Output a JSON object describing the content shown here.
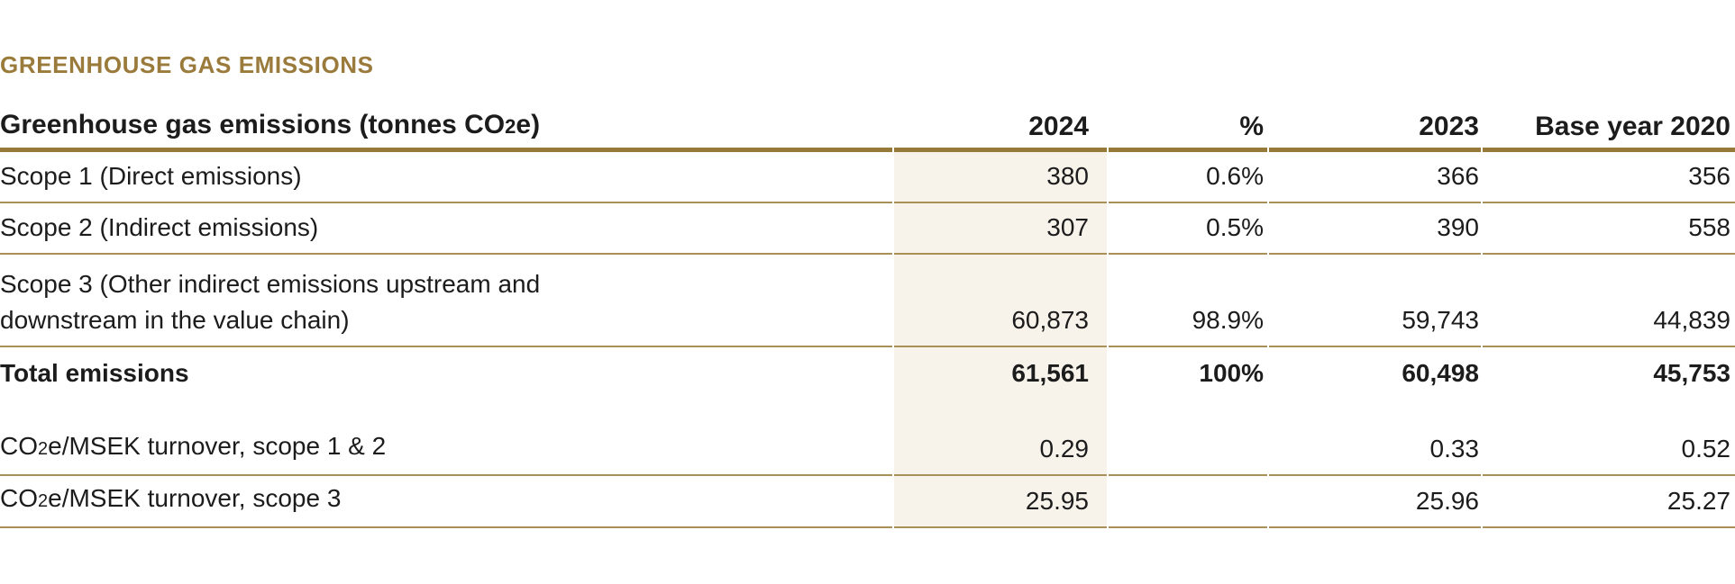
{
  "section_title": "GREENHOUSE GAS EMISSIONS",
  "table": {
    "header": {
      "label": {
        "pre": "Greenhouse gas emissions (tonnes CO",
        "sub": "2",
        "post": "e)"
      },
      "columns": [
        "2024",
        "%",
        "2023",
        "Base year 2020"
      ]
    },
    "rows": {
      "scope1": {
        "label_lines": [
          "Scope 1 (Direct emissions)"
        ],
        "values": [
          "380",
          "0.6%",
          "366",
          "356"
        ]
      },
      "scope2": {
        "label_lines": [
          "Scope 2 (Indirect emissions)"
        ],
        "values": [
          "307",
          "0.5%",
          "390",
          "558"
        ]
      },
      "scope3": {
        "label_lines": [
          "Scope 3 (Other indirect emissions upstream and",
          "downstream in the value chain)"
        ],
        "values": [
          "60,873",
          "98.9%",
          "59,743",
          "44,839"
        ]
      },
      "total": {
        "label_lines": [
          "Total emissions"
        ],
        "values": [
          "61,561",
          "100%",
          "60,498",
          "45,753"
        ]
      },
      "co2e_scope12": {
        "label": {
          "pre": "CO",
          "sub": "2",
          "post": "e/MSEK turnover, scope 1 & 2"
        },
        "values": [
          "0.29",
          "",
          "0.33",
          "0.52"
        ]
      },
      "co2e_scope3": {
        "label": {
          "pre": "CO",
          "sub": "2",
          "post": "e/MSEK turnover, scope 3"
        },
        "values": [
          "25.95",
          "",
          "25.96",
          "25.27"
        ]
      }
    }
  },
  "colors": {
    "accent_gold": "#9a7b3c",
    "rule_thick": "#97793a",
    "rule_thin": "#a98f58",
    "highlight_beige": "#f7f3ea",
    "text": "#1c1c1c"
  }
}
